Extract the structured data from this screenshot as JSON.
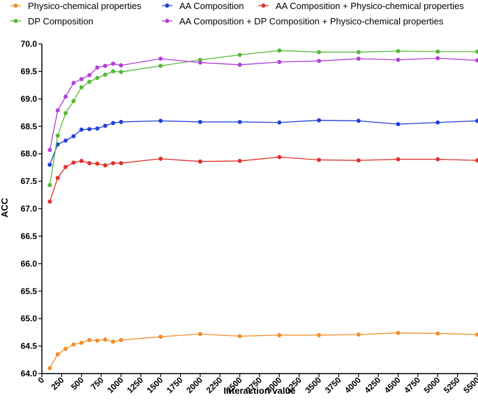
{
  "chart_data": {
    "type": "line",
    "title": "",
    "xlabel": "Interaction value",
    "ylabel": "ACC",
    "xlim": [
      0,
      5500
    ],
    "ylim": [
      64.0,
      70.0
    ],
    "x_ticks": [
      0,
      250,
      500,
      750,
      1000,
      1250,
      1500,
      1750,
      2000,
      2250,
      2500,
      2750,
      3000,
      3250,
      3500,
      3750,
      4000,
      4250,
      4500,
      4750,
      5000,
      5250,
      5500
    ],
    "y_ticks": [
      "64.0",
      "64.5",
      "65.0",
      "65.5",
      "66.0",
      "66.5",
      "67.0",
      "67.5",
      "68.0",
      "68.5",
      "69.0",
      "69.5",
      "70.0"
    ],
    "x": [
      100,
      200,
      300,
      400,
      500,
      600,
      700,
      800,
      900,
      1000,
      1500,
      2000,
      2500,
      3000,
      3500,
      4000,
      4500,
      5000,
      5500
    ],
    "legend_position": "top",
    "grid": false,
    "series": [
      {
        "name": "Physico-chemical properties",
        "color": "#f28e2b",
        "values": [
          64.1,
          64.35,
          64.45,
          64.53,
          64.56,
          64.61,
          64.6,
          64.62,
          64.58,
          64.61,
          64.67,
          64.72,
          64.68,
          64.7,
          64.7,
          64.71,
          64.74,
          64.73,
          64.71
        ]
      },
      {
        "name": "AA Composition",
        "color": "#2040d8",
        "values": [
          67.8,
          68.17,
          68.24,
          68.32,
          68.44,
          68.45,
          68.46,
          68.51,
          68.56,
          68.58,
          68.6,
          68.58,
          68.58,
          68.57,
          68.61,
          68.6,
          68.54,
          68.57,
          68.6
        ]
      },
      {
        "name": "AA Composition + Physico-chemical properties",
        "color": "#e0302a",
        "values": [
          67.13,
          67.56,
          67.76,
          67.84,
          67.87,
          67.83,
          67.82,
          67.79,
          67.83,
          67.83,
          67.91,
          67.86,
          67.87,
          67.94,
          67.89,
          67.88,
          67.9,
          67.9,
          67.88
        ]
      },
      {
        "name": "DP Composition",
        "color": "#56b83a",
        "values": [
          67.43,
          68.33,
          68.74,
          68.96,
          69.21,
          69.31,
          69.38,
          69.44,
          69.5,
          69.49,
          69.6,
          69.71,
          69.8,
          69.88,
          69.85,
          69.85,
          69.87,
          69.86,
          69.86
        ]
      },
      {
        "name": "AA Composition + DP Composition  + Physico-chemical properties",
        "color": "#b040d8",
        "values": [
          68.07,
          68.79,
          69.04,
          69.29,
          69.36,
          69.43,
          69.57,
          69.6,
          69.64,
          69.61,
          69.73,
          69.66,
          69.62,
          69.67,
          69.69,
          69.73,
          69.71,
          69.74,
          69.7
        ]
      }
    ]
  }
}
